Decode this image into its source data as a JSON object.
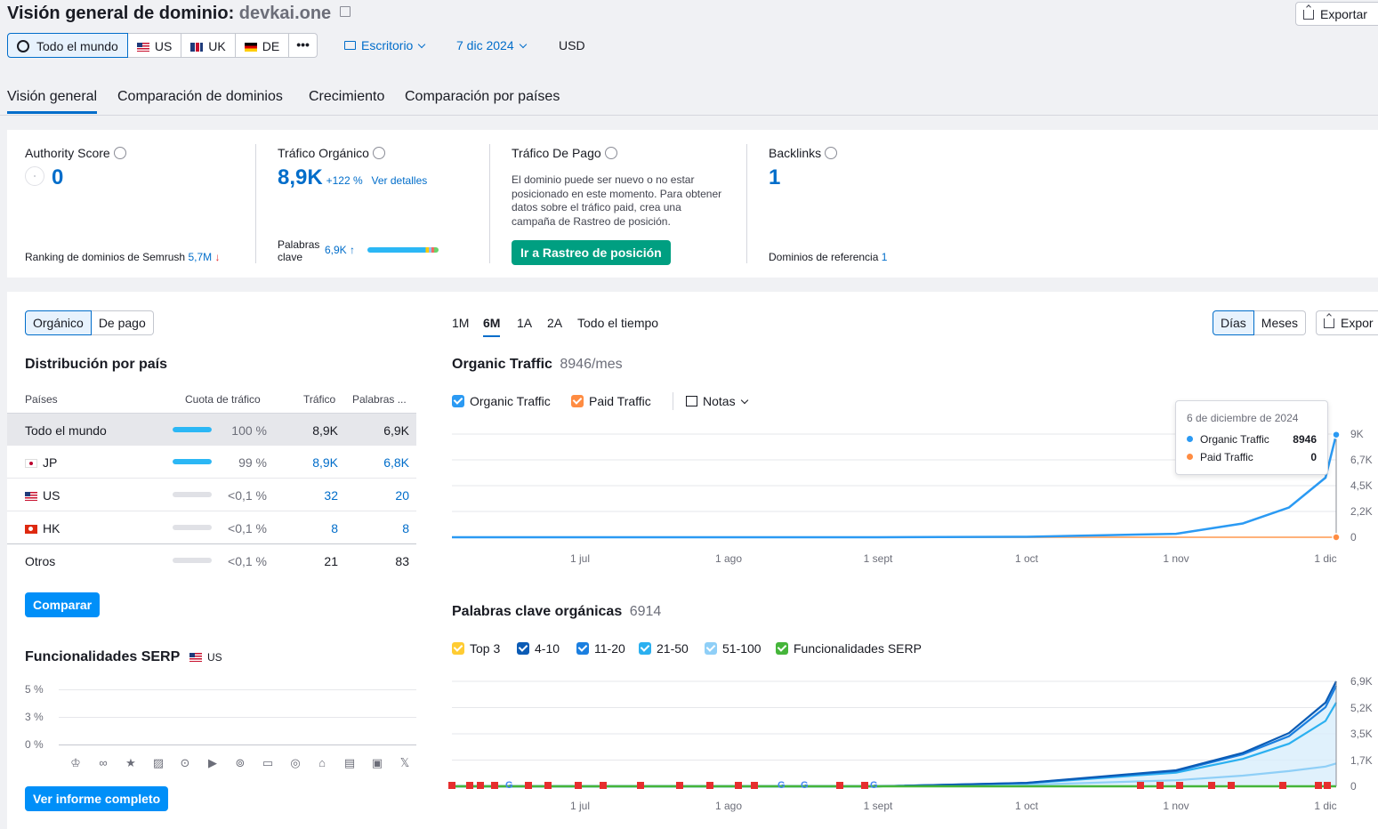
{
  "header": {
    "title_prefix": "Visión general de dominio:",
    "domain": "devkai.one",
    "export_label": "Exportar",
    "countries": [
      {
        "label": "Todo el mundo"
      },
      {
        "label": "US"
      },
      {
        "label": "UK"
      },
      {
        "label": "DE"
      }
    ],
    "more_label": "•••",
    "device_label": "Escritorio",
    "date_label": "7 dic 2024",
    "currency_label": "USD"
  },
  "tabs": [
    "Visión general",
    "Comparación de dominios",
    "Crecimiento",
    "Comparación por países"
  ],
  "metrics": {
    "authority": {
      "label": "Authority Score",
      "value": "0",
      "footer_label": "Ranking de dominios de Semrush",
      "footer_value": "5,7M",
      "footer_arrow": "↓"
    },
    "organic": {
      "label": "Tráfico Orgánico",
      "value": "8,9K",
      "change": "+122 %",
      "details_link": "Ver detalles",
      "kw_label_1": "Palabras",
      "kw_label_2": "clave",
      "kw_value": "6,9K",
      "kw_arrow": "↑"
    },
    "paid": {
      "label": "Tráfico De Pago",
      "message": "El dominio puede ser nuevo o no estar posicionado en este momento. Para obtener datos sobre el tráfico paid, crea una campaña de Rastreo de posición.",
      "button": "Ir a Rastreo de posición"
    },
    "backlinks": {
      "label": "Backlinks",
      "value": "1",
      "footer_label": "Dominios de referencia",
      "footer_value": "1"
    }
  },
  "left_panel": {
    "toggle": [
      "Orgánico",
      "De pago"
    ],
    "distribution_title": "Distribución por país",
    "columns": [
      "Países",
      "Cuota de tráfico",
      "Tráfico",
      "Palabras ..."
    ],
    "rows": [
      {
        "country": "Todo el mundo",
        "share": "100 %",
        "share_pct": 100,
        "traffic": "8,9K",
        "keywords": "6,9K"
      },
      {
        "country": "JP",
        "share": "99 %",
        "share_pct": 99,
        "traffic": "8,9K",
        "keywords": "6,8K"
      },
      {
        "country": "US",
        "share": "<0,1 %",
        "share_pct": 0,
        "traffic": "32",
        "keywords": "20"
      },
      {
        "country": "HK",
        "share": "<0,1 %",
        "share_pct": 0,
        "traffic": "8",
        "keywords": "8"
      },
      {
        "country": "Otros",
        "share": "<0,1 %",
        "share_pct": 0,
        "traffic": "21",
        "keywords": "83"
      }
    ],
    "compare_button": "Comparar",
    "serp_title": "Funcionalidades SERP",
    "serp_country": "US",
    "serp_yticks": [
      "5 %",
      "3 %",
      "0 %"
    ],
    "full_report_button": "Ver informe completo"
  },
  "right_panel": {
    "ranges": [
      "1M",
      "6M",
      "1A",
      "2A",
      "Todo el tiempo"
    ],
    "granularity": [
      "Días",
      "Meses"
    ],
    "export_label": "Expor",
    "traffic_title": "Organic Traffic",
    "traffic_value": "8946/mes",
    "legend_organic": "Organic Traffic",
    "legend_paid": "Paid Traffic",
    "notes_label": "Notas",
    "traffic_yticks": [
      "9K",
      "6,7K",
      "4,5K",
      "2,2K",
      "0"
    ],
    "xticks": [
      "1 jul",
      "1 ago",
      "1 sept",
      "1 oct",
      "1 nov",
      "1 dic"
    ],
    "tooltip": {
      "date": "6 de diciembre de 2024",
      "organic_label": "Organic Traffic",
      "organic_value": "8946",
      "paid_label": "Paid Traffic",
      "paid_value": "0"
    },
    "kw_title": "Palabras clave orgánicas",
    "kw_value": "6914",
    "kw_legend": [
      "Top 3",
      "4-10",
      "11-20",
      "21-50",
      "51-100",
      "Funcionalidades SERP"
    ],
    "kw_yticks": [
      "6,9K",
      "5,2K",
      "3,5K",
      "1,7K",
      "0"
    ]
  },
  "colors": {
    "accent": "#006dca",
    "organic": "#2b9af3",
    "paid": "#ff8c42",
    "green_button": "#009f81"
  },
  "chart_data": [
    {
      "type": "line",
      "title": "Organic Traffic",
      "x": [
        "1 jul",
        "1 ago",
        "1 sept",
        "1 oct",
        "1 nov",
        "15 nov",
        "25 nov",
        "1 dic",
        "6 dic"
      ],
      "series": [
        {
          "name": "Organic Traffic",
          "values": [
            0,
            0,
            0,
            40,
            300,
            1200,
            2600,
            5200,
            8946
          ]
        },
        {
          "name": "Paid Traffic",
          "values": [
            0,
            0,
            0,
            0,
            0,
            0,
            0,
            0,
            0
          ]
        }
      ],
      "ylim": [
        0,
        9000
      ]
    },
    {
      "type": "area",
      "title": "Palabras clave orgánicas",
      "x": [
        "1 jul",
        "1 ago",
        "1 sept",
        "1 oct",
        "1 nov",
        "15 nov",
        "25 nov",
        "1 dic",
        "6 dic"
      ],
      "series": [
        {
          "name": "51-100",
          "values": [
            0,
            0,
            0,
            100,
            400,
            700,
            1000,
            1300,
            1500
          ]
        },
        {
          "name": "21-50",
          "values": [
            0,
            0,
            0,
            200,
            900,
            1800,
            2800,
            4300,
            5500
          ]
        },
        {
          "name": "11-20",
          "values": [
            0,
            0,
            0,
            220,
            1000,
            2100,
            3300,
            5200,
            6600
          ]
        },
        {
          "name": "4-10",
          "values": [
            0,
            0,
            0,
            230,
            1050,
            2200,
            3500,
            5500,
            6900
          ]
        },
        {
          "name": "Top 3",
          "values": [
            0,
            0,
            0,
            230,
            1060,
            2220,
            3520,
            5520,
            6914
          ]
        }
      ],
      "ylim": [
        0,
        6900
      ]
    }
  ]
}
